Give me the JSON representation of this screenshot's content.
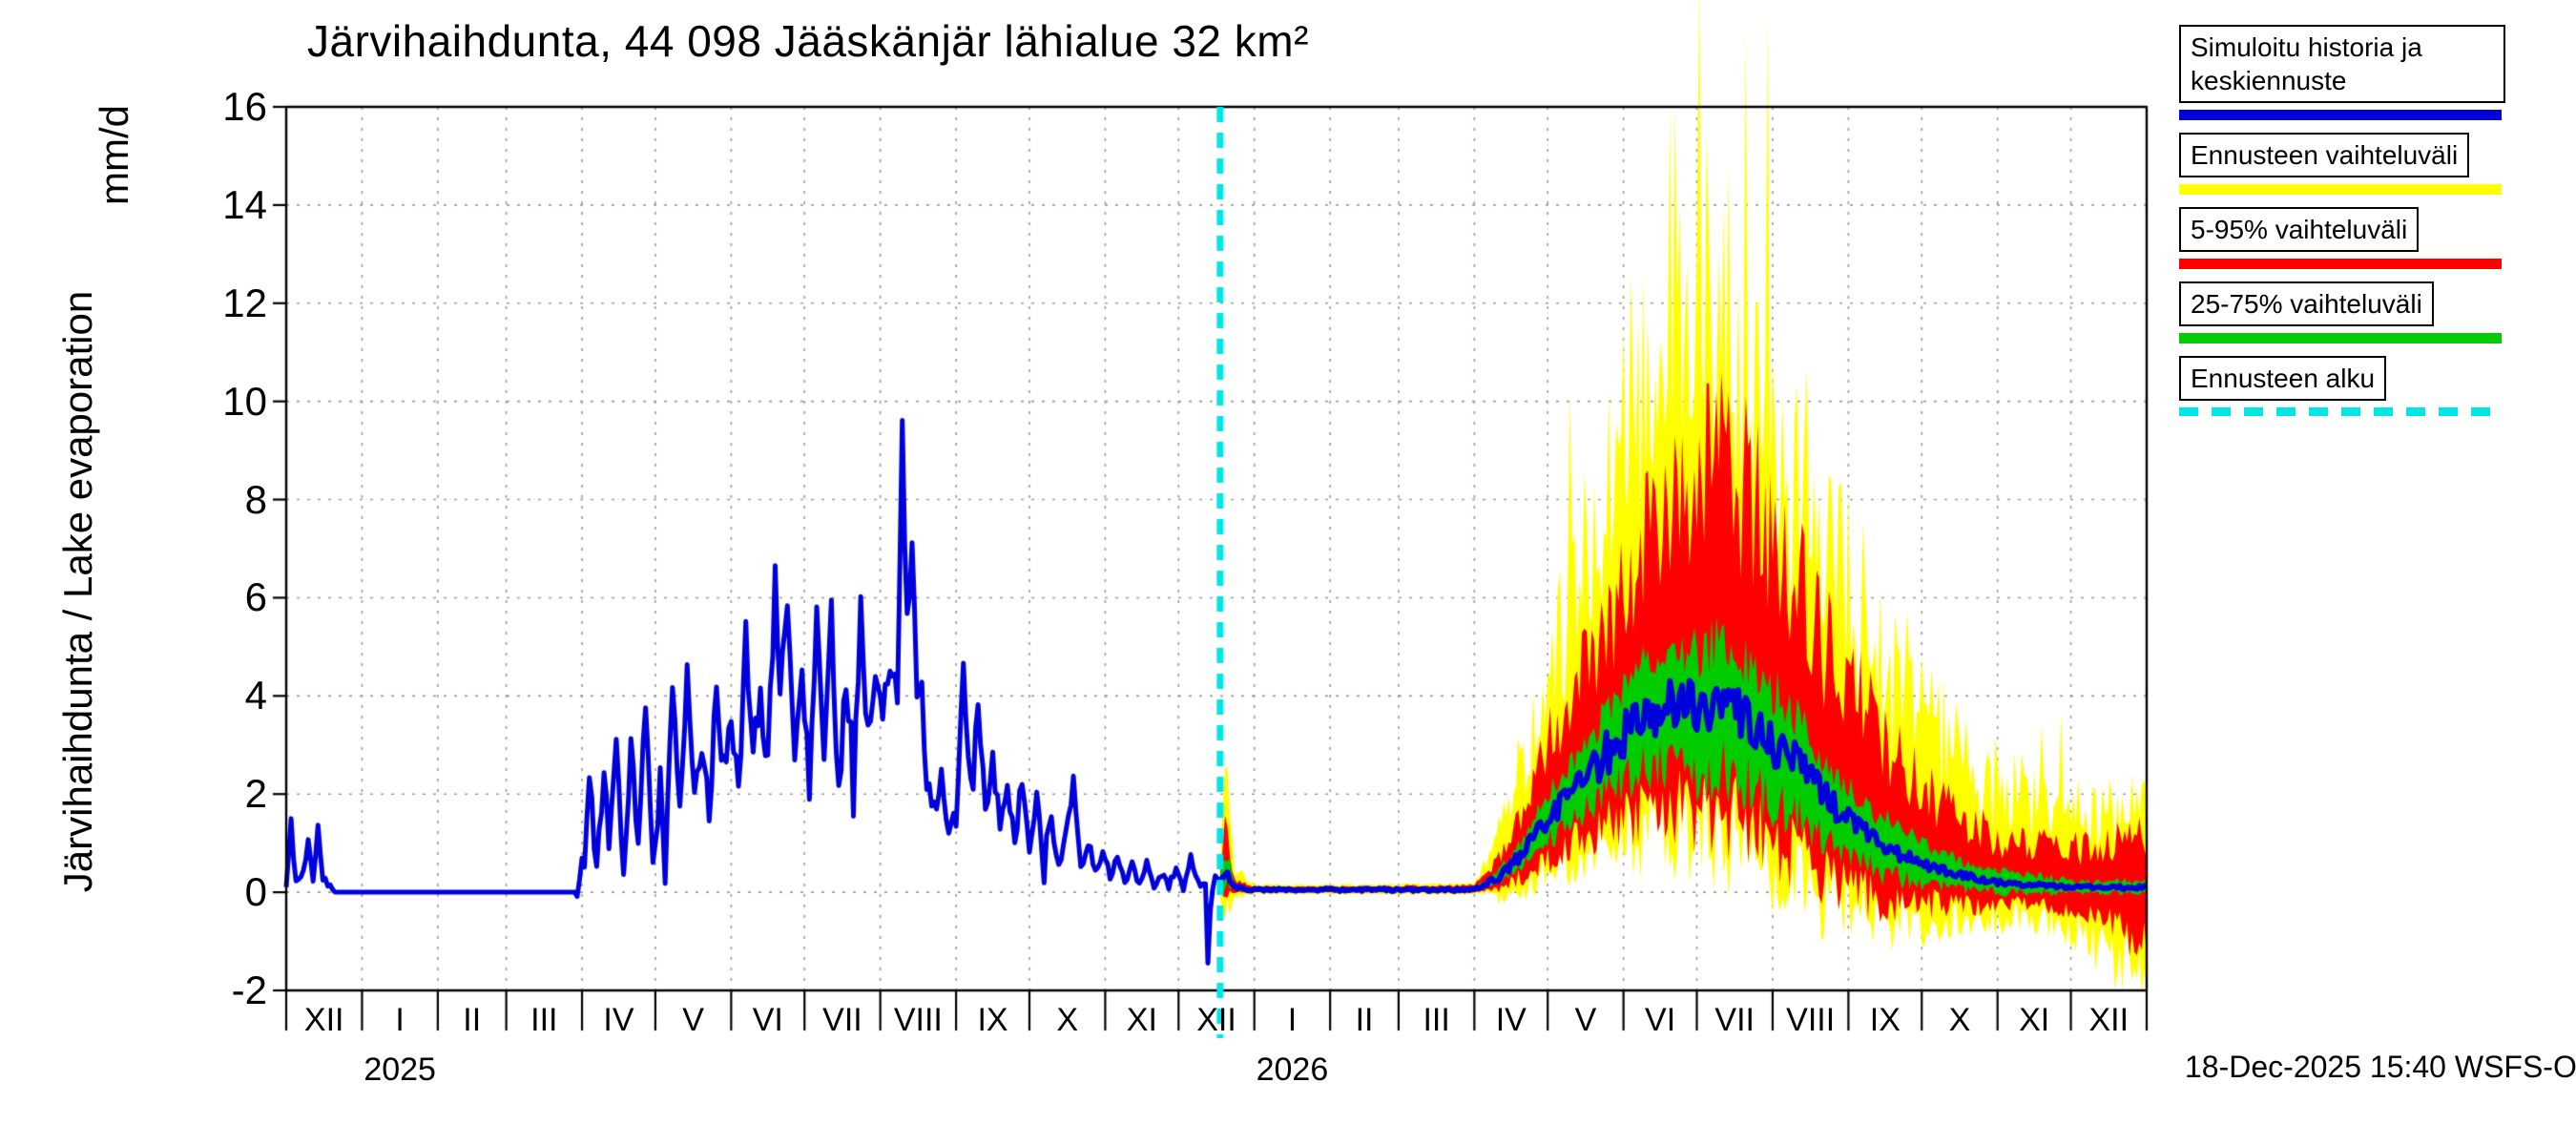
{
  "chart_data": {
    "type": "line",
    "title": "Järvihaihdunta, 44 098 Jääskänjär lähialue 32 km²",
    "ylabel": "Järvihaihdunta / Lake evaporation",
    "yunit": "mm/d",
    "ylim": [
      -2,
      16
    ],
    "ytick_step": 2,
    "grid": true,
    "timestamp": "18-Dec-2025 15:40 WSFS-O",
    "forecast_start_day": 382,
    "noise_seed": 11,
    "x_months": [
      {
        "label": "XII",
        "days": 31
      },
      {
        "label": "I",
        "days": 31
      },
      {
        "label": "II",
        "days": 28
      },
      {
        "label": "III",
        "days": 31
      },
      {
        "label": "IV",
        "days": 30
      },
      {
        "label": "V",
        "days": 31
      },
      {
        "label": "VI",
        "days": 30
      },
      {
        "label": "VII",
        "days": 31
      },
      {
        "label": "VIII",
        "days": 31
      },
      {
        "label": "IX",
        "days": 30
      },
      {
        "label": "X",
        "days": 31
      },
      {
        "label": "XI",
        "days": 30
      },
      {
        "label": "XII",
        "days": 31
      },
      {
        "label": "I",
        "days": 31
      },
      {
        "label": "II",
        "days": 28
      },
      {
        "label": "III",
        "days": 31
      },
      {
        "label": "IV",
        "days": 30
      },
      {
        "label": "V",
        "days": 31
      },
      {
        "label": "VI",
        "days": 30
      },
      {
        "label": "VII",
        "days": 31
      },
      {
        "label": "VIII",
        "days": 31
      },
      {
        "label": "IX",
        "days": 30
      },
      {
        "label": "X",
        "days": 31
      },
      {
        "label": "XI",
        "days": 30
      },
      {
        "label": "XII",
        "days": 31
      }
    ],
    "years": [
      {
        "label": "2025",
        "month_index": 1
      },
      {
        "label": "2026",
        "month_index": 13
      }
    ],
    "colors": {
      "history": "#0000dd",
      "forecast_median": "#0000dd",
      "range": "#ffff00",
      "p5_95": "#ff0000",
      "p25_75": "#00cc00",
      "forecast_start": "#00e6e6",
      "grid": "#999999"
    },
    "legend": [
      {
        "label": "Simuloitu historia ja keskiennuste",
        "color": "#0000dd",
        "style": "solid"
      },
      {
        "label": "Ennusteen vaihteluväli",
        "color": "#ffff00",
        "style": "solid"
      },
      {
        "label": "5-95% vaihteluväli",
        "color": "#ff0000",
        "style": "solid"
      },
      {
        "label": "25-75% vaihteluväli",
        "color": "#00cc00",
        "style": "solid"
      },
      {
        "label": "Ennusteen alku",
        "color": "#00e6e6",
        "style": "dashed"
      }
    ],
    "series": {
      "history": {
        "name": "Simuloitu historia ja keskiennuste",
        "control_points": [
          [
            0,
            0.1
          ],
          [
            2,
            1.4
          ],
          [
            4,
            0.2
          ],
          [
            7,
            0.4
          ],
          [
            9,
            1.1
          ],
          [
            11,
            0.2
          ],
          [
            13,
            1.3
          ],
          [
            15,
            0.3
          ],
          [
            18,
            0.1
          ],
          [
            20,
            0
          ],
          [
            119,
            0
          ],
          [
            122,
            0.8
          ],
          [
            124,
            2.1
          ],
          [
            127,
            0.6
          ],
          [
            130,
            2.6
          ],
          [
            132,
            1.0
          ],
          [
            135,
            3.3
          ],
          [
            138,
            0.6
          ],
          [
            141,
            2.9
          ],
          [
            144,
            1.2
          ],
          [
            147,
            3.6
          ],
          [
            150,
            0.8
          ],
          [
            153,
            2.2
          ],
          [
            155,
            0.5
          ],
          [
            158,
            3.9
          ],
          [
            161,
            1.8
          ],
          [
            164,
            4.6
          ],
          [
            167,
            2.2
          ],
          [
            170,
            3.1
          ],
          [
            173,
            1.4
          ],
          [
            176,
            4.2
          ],
          [
            179,
            2.6
          ],
          [
            182,
            3.4
          ],
          [
            185,
            2.0
          ],
          [
            188,
            5.2
          ],
          [
            191,
            2.8
          ],
          [
            194,
            4.0
          ],
          [
            197,
            2.6
          ],
          [
            200,
            6.3
          ],
          [
            202,
            4.2
          ],
          [
            205,
            5.8
          ],
          [
            208,
            3.0
          ],
          [
            211,
            4.4
          ],
          [
            214,
            2.2
          ],
          [
            217,
            5.9
          ],
          [
            220,
            2.8
          ],
          [
            223,
            5.6
          ],
          [
            226,
            1.9
          ],
          [
            229,
            4.5
          ],
          [
            232,
            2.6
          ],
          [
            235,
            5.7
          ],
          [
            238,
            3.2
          ],
          [
            241,
            4.3
          ],
          [
            244,
            3.6
          ],
          [
            247,
            4.4
          ],
          [
            250,
            4.1
          ],
          [
            252,
            9.3
          ],
          [
            254,
            5.4
          ],
          [
            256,
            7.2
          ],
          [
            258,
            4.6
          ],
          [
            260,
            4.2
          ],
          [
            262,
            2.0
          ],
          [
            265,
            1.7
          ],
          [
            268,
            2.4
          ],
          [
            271,
            1.5
          ],
          [
            274,
            1.2
          ],
          [
            277,
            4.5
          ],
          [
            280,
            2.1
          ],
          [
            283,
            3.7
          ],
          [
            286,
            1.6
          ],
          [
            289,
            2.6
          ],
          [
            292,
            1.3
          ],
          [
            295,
            2.2
          ],
          [
            298,
            1.1
          ],
          [
            301,
            2.3
          ],
          [
            304,
            1.0
          ],
          [
            307,
            1.9
          ],
          [
            310,
            0.7
          ],
          [
            313,
            1.5
          ],
          [
            316,
            0.6
          ],
          [
            319,
            1.2
          ],
          [
            322,
            2.3
          ],
          [
            325,
            0.5
          ],
          [
            328,
            1.0
          ],
          [
            331,
            0.4
          ],
          [
            334,
            0.9
          ],
          [
            337,
            0.3
          ],
          [
            340,
            0.7
          ],
          [
            343,
            0.2
          ],
          [
            346,
            0.6
          ],
          [
            349,
            0.2
          ],
          [
            352,
            0.5
          ],
          [
            355,
            0.15
          ],
          [
            358,
            0.4
          ],
          [
            361,
            0.1
          ],
          [
            364,
            0.5
          ],
          [
            367,
            0.1
          ],
          [
            370,
            0.7
          ],
          [
            373,
            0.2
          ],
          [
            376,
            0.1
          ],
          [
            377,
            -1.5
          ],
          [
            378,
            -0.3
          ],
          [
            380,
            0.4
          ],
          [
            382,
            0.2
          ]
        ],
        "noise_amp": [
          [
            0,
            0.15
          ],
          [
            18,
            0.1
          ],
          [
            20,
            0
          ],
          [
            118,
            0
          ],
          [
            122,
            0.35
          ],
          [
            250,
            0.4
          ],
          [
            300,
            0.25
          ],
          [
            334,
            0.12
          ],
          [
            370,
            0.08
          ],
          [
            382,
            0.08
          ]
        ]
      },
      "forecast_median": {
        "name": "Keskiennuste",
        "control_points": [
          [
            382,
            0.2
          ],
          [
            385,
            0.35
          ],
          [
            388,
            0.1
          ],
          [
            396,
            0.05
          ],
          [
            486,
            0.05
          ],
          [
            496,
            0.3
          ],
          [
            506,
            0.8
          ],
          [
            516,
            1.5
          ],
          [
            526,
            2.0
          ],
          [
            536,
            2.6
          ],
          [
            547,
            3.2
          ],
          [
            557,
            3.6
          ],
          [
            567,
            3.8
          ],
          [
            577,
            3.7
          ],
          [
            587,
            3.8
          ],
          [
            597,
            3.5
          ],
          [
            608,
            3.0
          ],
          [
            618,
            2.6
          ],
          [
            628,
            2.0
          ],
          [
            639,
            1.5
          ],
          [
            649,
            1.1
          ],
          [
            659,
            0.8
          ],
          [
            669,
            0.6
          ],
          [
            680,
            0.4
          ],
          [
            690,
            0.3
          ],
          [
            700,
            0.2
          ],
          [
            715,
            0.15
          ],
          [
            730,
            0.1
          ],
          [
            761,
            0.1
          ]
        ]
      },
      "band_offsets": {
        "p25_75_upper": [
          [
            382,
            0.1
          ],
          [
            384,
            0.5
          ],
          [
            388,
            0.08
          ],
          [
            396,
            0.02
          ],
          [
            486,
            0.03
          ],
          [
            500,
            0.2
          ],
          [
            516,
            0.5
          ],
          [
            532,
            0.7
          ],
          [
            547,
            0.9
          ],
          [
            562,
            1.1
          ],
          [
            577,
            1.3
          ],
          [
            592,
            1.25
          ],
          [
            608,
            1.1
          ],
          [
            624,
            0.9
          ],
          [
            639,
            0.7
          ],
          [
            654,
            0.55
          ],
          [
            669,
            0.4
          ],
          [
            684,
            0.3
          ],
          [
            700,
            0.22
          ],
          [
            730,
            0.15
          ],
          [
            761,
            0.12
          ]
        ],
        "p25_75_lower": [
          [
            382,
            0.08
          ],
          [
            384,
            0.3
          ],
          [
            388,
            0.06
          ],
          [
            396,
            0.015
          ],
          [
            486,
            0.02
          ],
          [
            500,
            0.15
          ],
          [
            516,
            0.45
          ],
          [
            532,
            0.7
          ],
          [
            547,
            0.95
          ],
          [
            562,
            1.15
          ],
          [
            577,
            1.35
          ],
          [
            592,
            1.3
          ],
          [
            608,
            1.15
          ],
          [
            624,
            0.95
          ],
          [
            639,
            0.75
          ],
          [
            654,
            0.55
          ],
          [
            669,
            0.38
          ],
          [
            684,
            0.28
          ],
          [
            700,
            0.2
          ],
          [
            730,
            0.12
          ],
          [
            761,
            0.1
          ]
        ],
        "p5_95_upper": [
          [
            382,
            0.2
          ],
          [
            384,
            1.1
          ],
          [
            388,
            0.15
          ],
          [
            396,
            0.05
          ],
          [
            486,
            0.08
          ],
          [
            500,
            0.5
          ],
          [
            516,
            1.5
          ],
          [
            532,
            2.2
          ],
          [
            547,
            3.0
          ],
          [
            562,
            3.8
          ],
          [
            577,
            4.5
          ],
          [
            587,
            4.9
          ],
          [
            597,
            4.6
          ],
          [
            608,
            4.1
          ],
          [
            624,
            3.4
          ],
          [
            639,
            2.8
          ],
          [
            654,
            2.2
          ],
          [
            669,
            1.6
          ],
          [
            684,
            1.2
          ],
          [
            700,
            0.9
          ],
          [
            715,
            0.8
          ],
          [
            730,
            0.8
          ],
          [
            745,
            0.9
          ],
          [
            761,
            1.0
          ]
        ],
        "p5_95_lower": [
          [
            382,
            0.1
          ],
          [
            384,
            0.5
          ],
          [
            388,
            0.08
          ],
          [
            396,
            0.03
          ],
          [
            486,
            0.04
          ],
          [
            500,
            0.3
          ],
          [
            516,
            0.8
          ],
          [
            532,
            1.2
          ],
          [
            547,
            1.6
          ],
          [
            562,
            1.9
          ],
          [
            577,
            2.2
          ],
          [
            592,
            2.15
          ],
          [
            608,
            2.0
          ],
          [
            624,
            1.7
          ],
          [
            639,
            1.4
          ],
          [
            654,
            1.1
          ],
          [
            669,
            0.8
          ],
          [
            684,
            0.6
          ],
          [
            700,
            0.45
          ],
          [
            715,
            0.4
          ],
          [
            730,
            0.45
          ],
          [
            745,
            0.7
          ],
          [
            761,
            1.2
          ]
        ],
        "range_upper": [
          [
            382,
            0.4
          ],
          [
            384,
            1.9
          ],
          [
            388,
            0.3
          ],
          [
            396,
            0.08
          ],
          [
            486,
            0.1
          ],
          [
            500,
            1.2
          ],
          [
            516,
            3.0
          ],
          [
            532,
            4.5
          ],
          [
            547,
            6.0
          ],
          [
            557,
            7.0
          ],
          [
            567,
            8.5
          ],
          [
            577,
            8.2
          ],
          [
            587,
            7.8
          ],
          [
            597,
            7.4
          ],
          [
            608,
            6.6
          ],
          [
            624,
            5.5
          ],
          [
            639,
            4.6
          ],
          [
            654,
            3.7
          ],
          [
            669,
            3.0
          ],
          [
            684,
            2.4
          ],
          [
            700,
            2.0
          ],
          [
            715,
            1.7
          ],
          [
            730,
            1.5
          ],
          [
            745,
            1.5
          ],
          [
            761,
            1.6
          ]
        ],
        "range_lower": [
          [
            382,
            0.3
          ],
          [
            384,
            0.8
          ],
          [
            388,
            0.2
          ],
          [
            396,
            0.04
          ],
          [
            486,
            0.05
          ],
          [
            500,
            0.5
          ],
          [
            516,
            1.0
          ],
          [
            532,
            1.5
          ],
          [
            547,
            2.0
          ],
          [
            562,
            2.3
          ],
          [
            577,
            2.6
          ],
          [
            592,
            2.55
          ],
          [
            608,
            2.4
          ],
          [
            624,
            2.1
          ],
          [
            639,
            1.8
          ],
          [
            654,
            1.45
          ],
          [
            669,
            1.15
          ],
          [
            684,
            0.9
          ],
          [
            700,
            0.75
          ],
          [
            715,
            0.7
          ],
          [
            730,
            0.85
          ],
          [
            745,
            1.3
          ],
          [
            761,
            1.9
          ]
        ]
      }
    }
  }
}
